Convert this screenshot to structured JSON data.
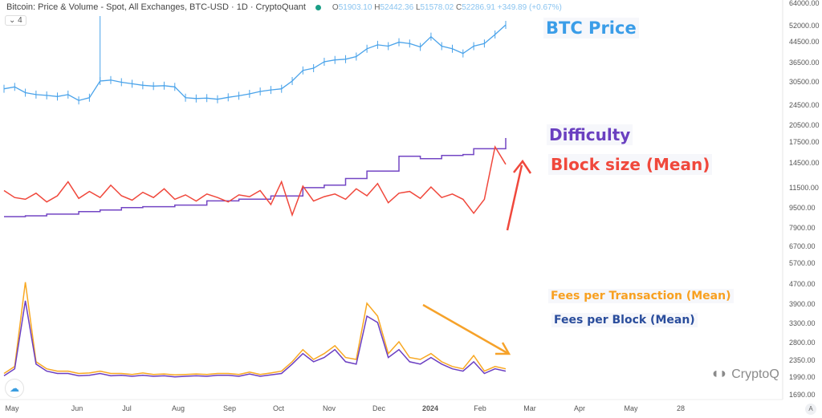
{
  "header": {
    "title": "Bitcoin: Price & Volume - Spot, All Exchanges, BTC-USD · 1D · CryptoQuant",
    "o_label": "O",
    "o": "51903.10",
    "h_label": "H",
    "h": "52442.36",
    "l_label": "L",
    "l": "51578.02",
    "c_label": "C",
    "c": "52286.91",
    "change": "+349.89 (+0.67%)",
    "collapse": "⌄ 4"
  },
  "annotations": {
    "btc_price": "BTC Price",
    "difficulty": "Difficulty",
    "block_size": "Block size (Mean)",
    "fees_tx": "Fees per Transaction (Mean)",
    "fees_block": "Fees per Block (Mean)"
  },
  "watermark": "CryptoQ",
  "auto_button": "A",
  "colors": {
    "price": "#4aa3ea",
    "difficulty": "#7346c4",
    "block_size": "#f0483c",
    "fees_tx": "#f8a822",
    "fees_block": "#6b3fc2",
    "fees_block_label": "#2a4d9c",
    "orange_arrow": "#f6a22a"
  },
  "chart_data": {
    "type": "line",
    "title": "Bitcoin: Price & Volume - Spot, All Exchanges, BTC-USD",
    "y_ticks": [
      "64000.00",
      "52000.00",
      "44500.00",
      "36500.00",
      "30500.00",
      "24500.00",
      "20500.00",
      "17500.00",
      "14500.00",
      "11500.00",
      "9500.00",
      "7900.00",
      "6700.00",
      "5700.00",
      "4700.00",
      "3900.00",
      "3300.00",
      "2800.00",
      "2350.00",
      "1990.00",
      "1690.00"
    ],
    "x_ticks": [
      "May",
      "Jun",
      "Jul",
      "Aug",
      "Sep",
      "Oct",
      "Nov",
      "Dec",
      "2024",
      "Feb",
      "Mar",
      "Apr",
      "May",
      "28"
    ],
    "series": [
      {
        "name": "BTC Price",
        "values": [
          28500,
          29000,
          27500,
          27000,
          26800,
          26500,
          27000,
          25500,
          26200,
          30500,
          30800,
          30200,
          29800,
          29400,
          29200,
          29300,
          29000,
          26200,
          26000,
          26100,
          25800,
          26300,
          26700,
          27200,
          27800,
          28200,
          28500,
          30500,
          33800,
          34500,
          36500,
          37200,
          37500,
          38500,
          41500,
          43000,
          42500,
          44000,
          43500,
          42200,
          46500,
          42500,
          41500,
          39700,
          42500,
          43500,
          47500,
          52000
        ]
      },
      {
        "name": "Difficulty",
        "values": [
          9000,
          9000,
          9100,
          9100,
          9300,
          9300,
          9300,
          9600,
          9600,
          9800,
          9800,
          10100,
          10100,
          10200,
          10200,
          10200,
          10400,
          10400,
          10400,
          10900,
          10900,
          10900,
          11100,
          11100,
          11100,
          11500,
          11500,
          11500,
          12500,
          12500,
          12800,
          12800,
          13600,
          13600,
          14500,
          14500,
          14500,
          16300,
          16300,
          16000,
          16000,
          16400,
          16400,
          16500,
          17200,
          17200,
          17200,
          18500
        ]
      },
      {
        "name": "Block size (Mean)",
        "values": [
          11800,
          11000,
          10800,
          11500,
          10500,
          11200,
          12800,
          10900,
          11700,
          11000,
          12400,
          11200,
          10700,
          11600,
          11000,
          12000,
          10800,
          11300,
          10600,
          11400,
          11000,
          10500,
          11300,
          11100,
          11800,
          10200,
          12800,
          9000,
          12300,
          10600,
          11100,
          11400,
          10800,
          12000,
          11200,
          12600,
          10400,
          11500,
          11700,
          10900,
          12200,
          11000,
          11400,
          10800,
          9200,
          10800,
          16800,
          14800
        ]
      },
      {
        "name": "Fees per Transaction (Mean)",
        "values": [
          2050,
          2200,
          4750,
          2300,
          2150,
          2100,
          2100,
          2050,
          2060,
          2100,
          2050,
          2050,
          2030,
          2060,
          2030,
          2040,
          2020,
          2030,
          2040,
          2030,
          2050,
          2050,
          2030,
          2080,
          2030,
          2060,
          2100,
          2300,
          2600,
          2350,
          2500,
          2700,
          2400,
          2350,
          3900,
          3500,
          2500,
          2800,
          2400,
          2350,
          2500,
          2300,
          2200,
          2150,
          2450,
          2100,
          2200,
          2150
        ]
      },
      {
        "name": "Fees per Block (Mean)",
        "values": [
          2000,
          2150,
          4000,
          2250,
          2100,
          2050,
          2050,
          2000,
          2010,
          2050,
          2000,
          2010,
          1990,
          2010,
          1990,
          2000,
          1980,
          1990,
          2000,
          1990,
          2010,
          2010,
          1990,
          2040,
          1990,
          2020,
          2050,
          2250,
          2500,
          2300,
          2400,
          2600,
          2300,
          2250,
          3500,
          3300,
          2400,
          2600,
          2300,
          2250,
          2400,
          2250,
          2150,
          2100,
          2300,
          2050,
          2150,
          2100
        ]
      }
    ]
  }
}
